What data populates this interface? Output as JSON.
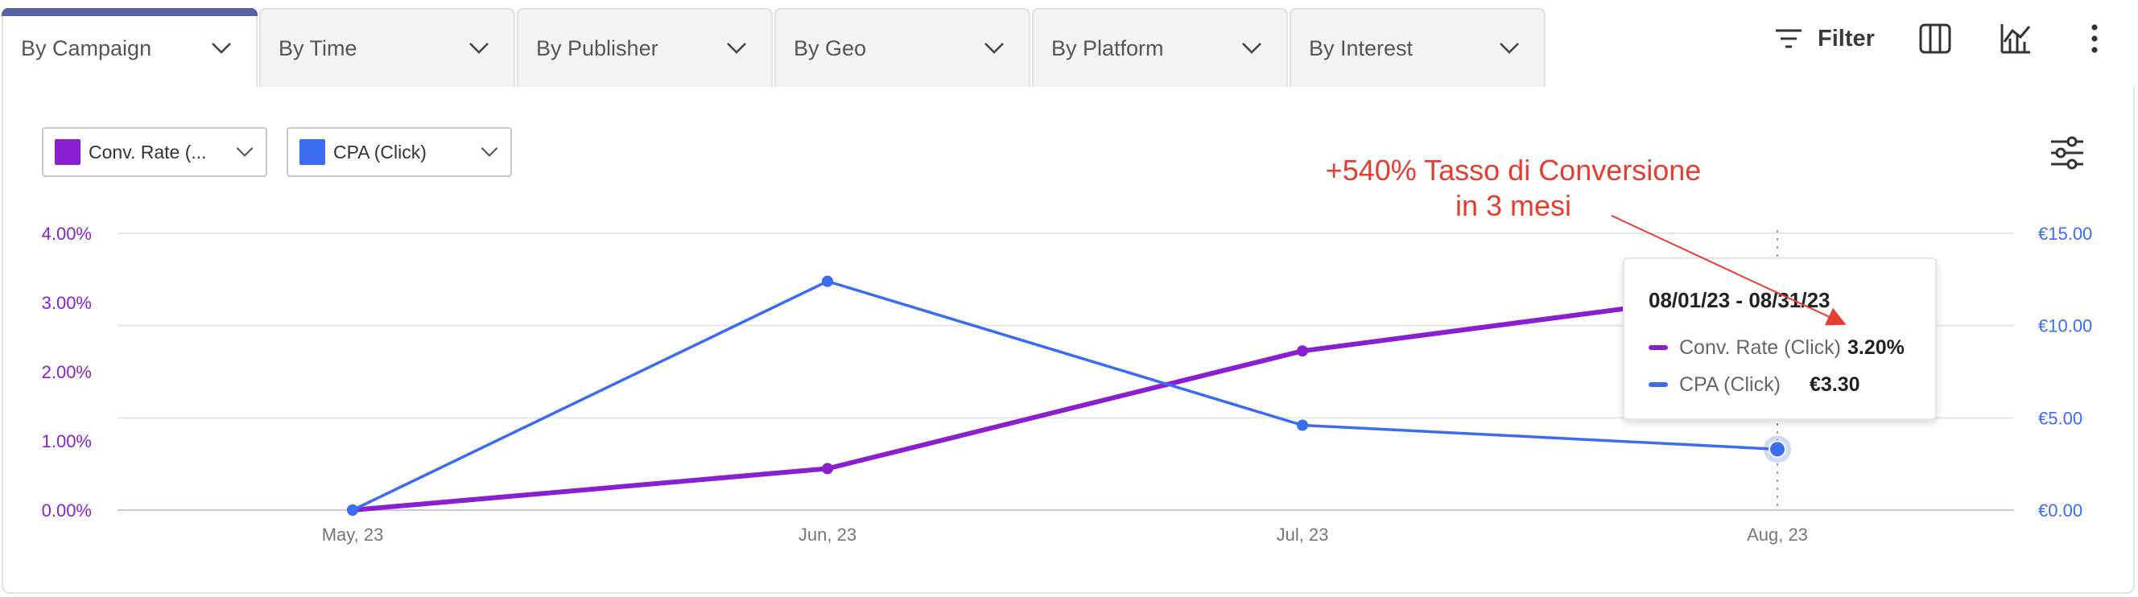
{
  "tabs": [
    {
      "label": "By Campaign",
      "active": true
    },
    {
      "label": "By Time",
      "active": false
    },
    {
      "label": "By Publisher",
      "active": false
    },
    {
      "label": "By Geo",
      "active": false
    },
    {
      "label": "By Platform",
      "active": false
    },
    {
      "label": "By Interest",
      "active": false
    }
  ],
  "toolbar": {
    "filter_label": "Filter",
    "filter_icon": "filter-lines-icon",
    "columns_icon": "columns-icon",
    "chart_icon": "chart-toggle-icon",
    "more_icon": "kebab-menu-icon"
  },
  "series_selectors": [
    {
      "label": "Conv. Rate (...",
      "color": "#8a1fd0"
    },
    {
      "label": "CPA (Click)",
      "color": "#3b6cf0"
    }
  ],
  "settings_icon": "sliders-icon",
  "colors": {
    "conv_rate": "#8a1fd0",
    "cpa": "#3b6cf0",
    "annotation": "#e53d2f",
    "tab_accent": "#5a62a6"
  },
  "chart_data": {
    "type": "line",
    "x": [
      "May, 23",
      "Jun, 23",
      "Jul, 23",
      "Aug, 23"
    ],
    "series": [
      {
        "name": "Conv. Rate (Click)",
        "axis": "left",
        "values": [
          0.0,
          0.6,
          2.3,
          3.2
        ],
        "unit": "%"
      },
      {
        "name": "CPA (Click)",
        "axis": "right",
        "values": [
          0.0,
          12.4,
          4.6,
          3.3
        ],
        "unit": "€"
      }
    ],
    "y_left": {
      "ticks": [
        "0.00%",
        "1.00%",
        "2.00%",
        "3.00%",
        "4.00%"
      ],
      "range": [
        0,
        4
      ]
    },
    "y_right": {
      "ticks": [
        "€0.00",
        "€5.00",
        "€10.00",
        "€15.00"
      ],
      "range": [
        0,
        15
      ]
    },
    "grid": true,
    "highlighted_x": "Aug, 23"
  },
  "tooltip": {
    "title": "08/01/23 - 08/31/23",
    "rows": [
      {
        "name": "Conv. Rate (Click)",
        "value": "3.20%"
      },
      {
        "name": "CPA (Click)",
        "value": "€3.30"
      }
    ]
  },
  "annotation": {
    "line1": "+540% Tasso di Conversione",
    "line2": "in 3 mesi"
  }
}
